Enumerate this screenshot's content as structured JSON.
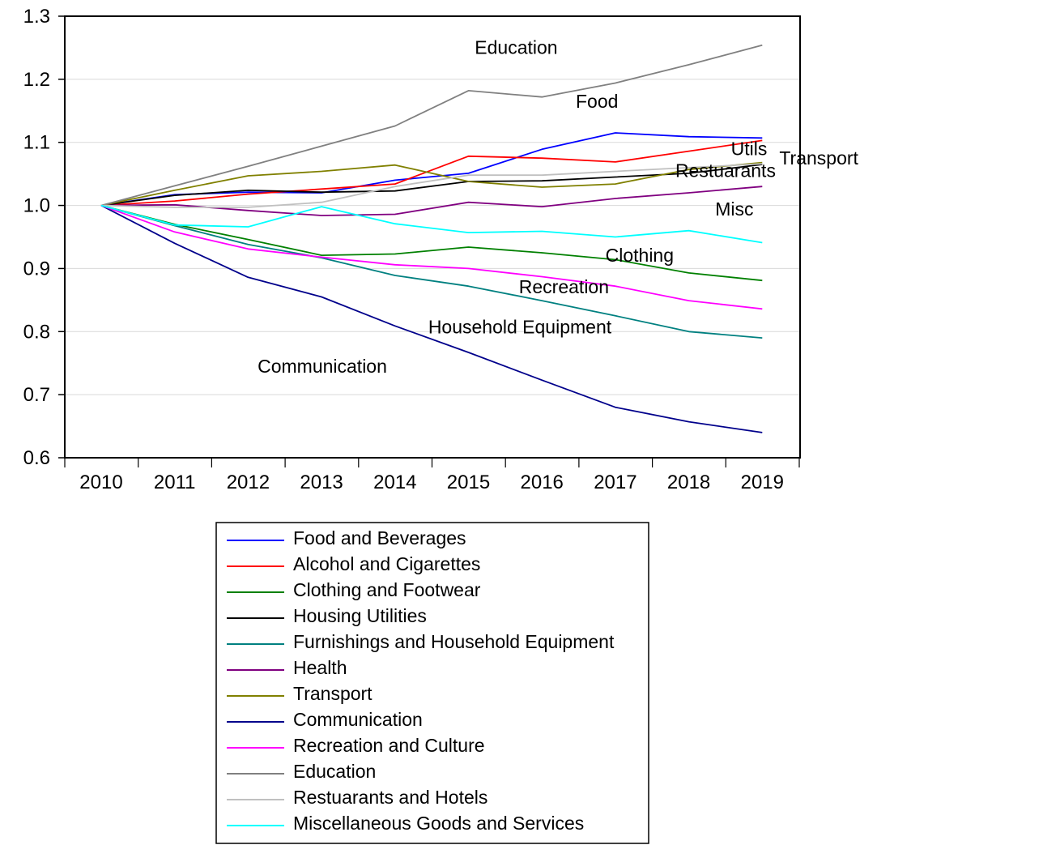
{
  "chart_data": {
    "type": "line",
    "x": [
      "2010",
      "2011",
      "2012",
      "2013",
      "2014",
      "2015",
      "2016",
      "2017",
      "2018",
      "2019"
    ],
    "ylim": [
      0.6,
      1.3
    ],
    "yticks": [
      "0.6",
      "0.7",
      "0.8",
      "0.9",
      "1.0",
      "1.1",
      "1.2",
      "1.3"
    ],
    "grid": true,
    "legend_placement": "bottom",
    "series": [
      {
        "name": "Food and Beverages",
        "color": "#0000ff",
        "values": [
          1.0,
          1.017,
          1.021,
          1.02,
          1.04,
          1.051,
          1.089,
          1.115,
          1.109,
          1.107
        ]
      },
      {
        "name": "Alcohol and Cigarettes",
        "color": "#ff0000",
        "values": [
          1.0,
          1.007,
          1.018,
          1.026,
          1.034,
          1.078,
          1.075,
          1.069,
          1.086,
          1.103
        ]
      },
      {
        "name": "Clothing and Footwear",
        "color": "#008000",
        "values": [
          1.0,
          0.97,
          0.946,
          0.921,
          0.923,
          0.934,
          0.925,
          0.914,
          0.893,
          0.881
        ]
      },
      {
        "name": "Housing Utilities",
        "color": "#000000",
        "values": [
          1.0,
          1.016,
          1.024,
          1.021,
          1.023,
          1.038,
          1.039,
          1.045,
          1.051,
          1.065
        ]
      },
      {
        "name": "Furnishings and Household Equipment",
        "color": "#008080",
        "values": [
          1.0,
          0.968,
          0.938,
          0.917,
          0.889,
          0.872,
          0.849,
          0.825,
          0.8,
          0.79
        ]
      },
      {
        "name": "Health",
        "color": "#800080",
        "values": [
          1.0,
          1.001,
          0.992,
          0.984,
          0.986,
          1.005,
          0.998,
          1.011,
          1.02,
          1.03
        ]
      },
      {
        "name": "Transport",
        "color": "#808000",
        "values": [
          1.0,
          1.024,
          1.047,
          1.054,
          1.064,
          1.038,
          1.029,
          1.034,
          1.057,
          1.068
        ]
      },
      {
        "name": "Communication",
        "color": "#00008b",
        "values": [
          1.0,
          0.94,
          0.886,
          0.855,
          0.809,
          0.767,
          0.723,
          0.68,
          0.657,
          0.64
        ]
      },
      {
        "name": "Recreation and Culture",
        "color": "#ff00ff",
        "values": [
          1.0,
          0.958,
          0.931,
          0.918,
          0.906,
          0.9,
          0.887,
          0.872,
          0.849,
          0.836
        ]
      },
      {
        "name": "Education",
        "color": "#808080",
        "values": [
          1.0,
          1.031,
          1.062,
          1.094,
          1.126,
          1.182,
          1.172,
          1.194,
          1.223,
          1.254
        ]
      },
      {
        "name": "Restuarants and Hotels",
        "color": "#c0c0c0",
        "values": [
          1.0,
          0.997,
          0.997,
          1.005,
          1.03,
          1.048,
          1.048,
          1.054,
          1.06,
          1.066
        ]
      },
      {
        "name": "Miscellaneous Goods and Services",
        "color": "#00ffff",
        "values": [
          1.0,
          0.969,
          0.966,
          0.998,
          0.971,
          0.957,
          0.959,
          0.95,
          0.96,
          0.941
        ]
      }
    ],
    "annotations": [
      {
        "text": "Education",
        "x": 5.65,
        "y": 1.24
      },
      {
        "text": "Food",
        "x": 6.75,
        "y": 1.155
      },
      {
        "text": "Utils",
        "x": 8.82,
        "y": 1.08
      },
      {
        "text": "Transport",
        "x": 9.77,
        "y": 1.065
      },
      {
        "text": "Restuarants",
        "x": 8.5,
        "y": 1.045
      },
      {
        "text": "Misc",
        "x": 8.62,
        "y": 0.984
      },
      {
        "text": "Clothing",
        "x": 7.33,
        "y": 0.911
      },
      {
        "text": "Recreation",
        "x": 6.3,
        "y": 0.861
      },
      {
        "text": "Household Equipment",
        "x": 5.7,
        "y": 0.797
      },
      {
        "text": "Communication",
        "x": 3.01,
        "y": 0.735
      }
    ]
  }
}
